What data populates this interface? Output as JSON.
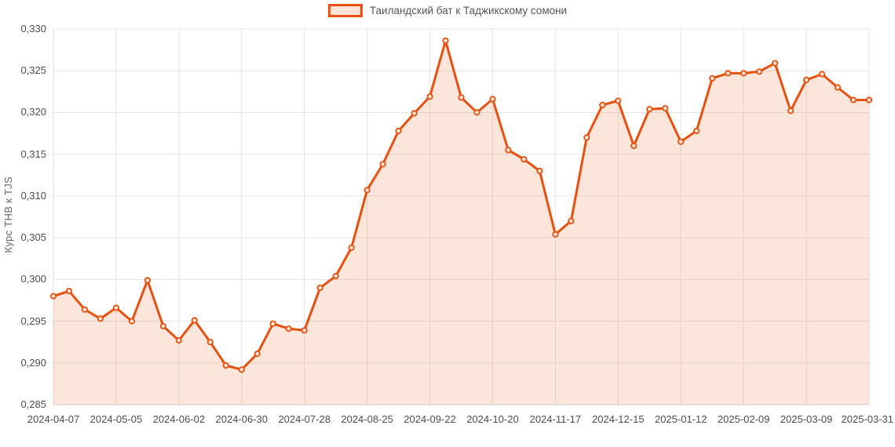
{
  "legend": {
    "label": "Таиландский бат к Таджикскому сомони"
  },
  "colors": {
    "line": "#e8500f",
    "area_fill": "rgba(232,80,15,0.15)",
    "marker_fill": "#fbe3d7",
    "grid": "#e6e6e6",
    "axis_line": "#c9c9c9",
    "plot_border": "#dedede",
    "tick_text": "#4d4d4d",
    "legend_text": "#555555"
  },
  "chart_data": {
    "type": "area",
    "title": "",
    "xlabel": "",
    "ylabel": "Курс THB к TJS",
    "grid": true,
    "legend_position": "top",
    "ylim": [
      0.285,
      0.33
    ],
    "y_tick_step": 0.005,
    "y_tick_labels": [
      "0,285",
      "0,290",
      "0,295",
      "0,300",
      "0,305",
      "0,310",
      "0,315",
      "0,320",
      "0,325",
      "0,330"
    ],
    "x_tick_indices": [
      0,
      4,
      8,
      12,
      16,
      20,
      24,
      28,
      32,
      36,
      40,
      44,
      48,
      52
    ],
    "x_tick_labels": [
      "2024-04-07",
      "2024-05-05",
      "2024-06-02",
      "2024-06-30",
      "2024-07-28",
      "2024-08-25",
      "2024-09-22",
      "2024-10-20",
      "2024-11-17",
      "2024-12-15",
      "2025-01-12",
      "2025-02-09",
      "2025-03-09",
      "2025-03-31"
    ],
    "series": [
      {
        "name": "Таиландский бат к Таджикскому сомони",
        "values": [
          0.298,
          0.2986,
          0.2964,
          0.2953,
          0.2966,
          0.295,
          0.2999,
          0.2944,
          0.2927,
          0.2951,
          0.2925,
          0.2897,
          0.2892,
          0.2911,
          0.2947,
          0.2941,
          0.2939,
          0.299,
          0.3004,
          0.3038,
          0.3107,
          0.3138,
          0.3178,
          0.3199,
          0.3219,
          0.3286,
          0.3218,
          0.32,
          0.3216,
          0.3155,
          0.3144,
          0.313,
          0.3054,
          0.307,
          0.317,
          0.3209,
          0.3214,
          0.316,
          0.3204,
          0.3205,
          0.3165,
          0.3178,
          0.3241,
          0.3247,
          0.3247,
          0.3249,
          0.3259,
          0.3202,
          0.3239,
          0.3246,
          0.323,
          0.3215,
          0.3215
        ]
      }
    ]
  }
}
